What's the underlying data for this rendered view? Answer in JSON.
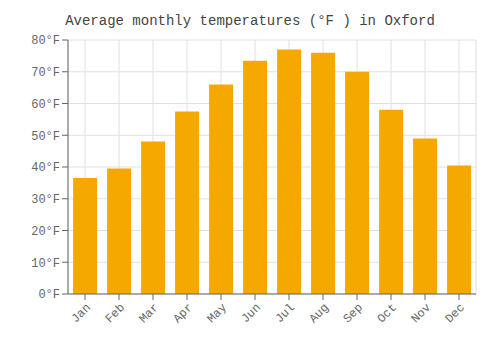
{
  "chart_data": {
    "type": "bar",
    "title": "Average monthly temperatures (°F ) in Oxford",
    "categories": [
      "Jan",
      "Feb",
      "Mar",
      "Apr",
      "May",
      "Jun",
      "Jul",
      "Aug",
      "Sep",
      "Oct",
      "Nov",
      "Dec"
    ],
    "values": [
      36.5,
      39.5,
      48.0,
      57.5,
      66.0,
      73.5,
      77.0,
      76.0,
      70.0,
      58.0,
      49.0,
      40.5
    ],
    "color": "#F5A800",
    "ylim": [
      0,
      80
    ],
    "yticks": [
      {
        "value": 0,
        "label": "0°F"
      },
      {
        "value": 10,
        "label": "10°F"
      },
      {
        "value": 20,
        "label": "20°F"
      },
      {
        "value": 30,
        "label": "30°F"
      },
      {
        "value": 40,
        "label": "40°F"
      },
      {
        "value": 50,
        "label": "50°F"
      },
      {
        "value": 60,
        "label": "60°F"
      },
      {
        "value": 70,
        "label": "70°F"
      },
      {
        "value": 80,
        "label": "80°F"
      }
    ],
    "grid": true
  }
}
